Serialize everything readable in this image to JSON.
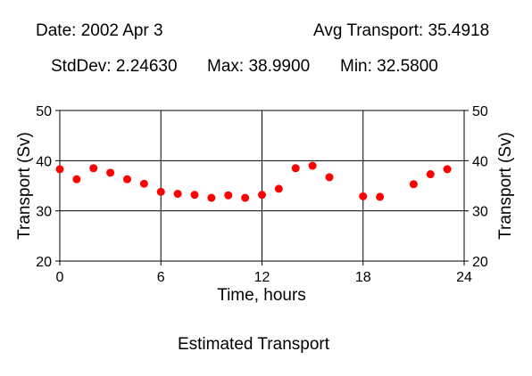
{
  "header": {
    "date": "Date: 2002 Apr 3",
    "avg": "Avg Transport: 35.4918",
    "stddev": "StdDev: 2.24630",
    "max": "Max: 38.9900",
    "min": "Min: 32.5800"
  },
  "footer": {
    "title": "Estimated Transport"
  },
  "chart_data": {
    "type": "scatter",
    "title": "Estimated Transport",
    "xlabel": "Time, hours",
    "ylabel": "Transport (Sv)",
    "y2label": "Transport (Sv)",
    "xlim": [
      0,
      24
    ],
    "ylim": [
      20,
      50
    ],
    "xticks": [
      0,
      6,
      12,
      18,
      24
    ],
    "yticks": [
      20,
      30,
      40,
      50
    ],
    "grid": true,
    "point_color": "#ff0000",
    "series": [
      {
        "x": [
          0,
          1,
          2,
          3,
          4,
          5,
          6,
          7,
          8,
          9,
          10,
          11,
          12,
          13,
          14,
          15,
          16,
          18,
          19,
          21,
          22,
          23
        ],
        "y": [
          38.3,
          36.3,
          38.5,
          37.6,
          36.3,
          35.4,
          33.8,
          33.4,
          33.2,
          32.6,
          33.1,
          32.6,
          33.2,
          34.4,
          38.5,
          38.99,
          36.7,
          32.9,
          32.8,
          35.3,
          37.3,
          38.3
        ]
      }
    ]
  }
}
